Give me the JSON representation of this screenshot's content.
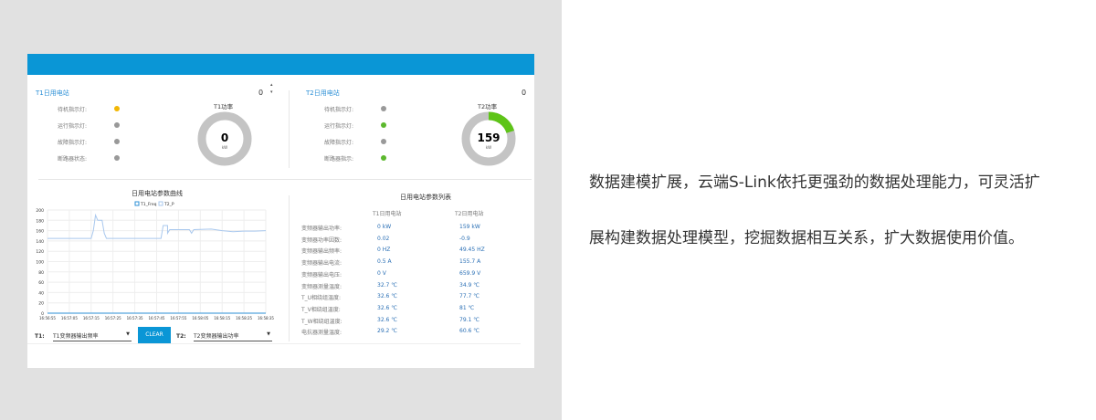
{
  "t1": {
    "title": "T1日用电站",
    "count": "0",
    "lights": [
      {
        "label": "待机指示灯:",
        "color": "#f2b705"
      },
      {
        "label": "运行指示灯:",
        "color": "#999999"
      },
      {
        "label": "故障指示灯:",
        "color": "#999999"
      },
      {
        "label": "断路器状态:",
        "color": "#999999"
      }
    ],
    "gauge_title": "T1功率",
    "gauge_value": "0",
    "gauge_unit": "kW",
    "gauge_fraction": 0
  },
  "t2": {
    "title": "T2日用电站",
    "count": "0",
    "lights": [
      {
        "label": "待机指示灯:",
        "color": "#999999"
      },
      {
        "label": "运行指示灯:",
        "color": "#5cb82e"
      },
      {
        "label": "故障指示灯:",
        "color": "#999999"
      },
      {
        "label": "断路器指示:",
        "color": "#5cb82e"
      }
    ],
    "gauge_title": "T2功率",
    "gauge_value": "159",
    "gauge_unit": "kW",
    "gauge_fraction": 0.2
  },
  "chart_data": {
    "type": "line",
    "title": "日用电站参数曲线",
    "ylim": [
      0,
      200
    ],
    "yticks": [
      "0",
      "20",
      "40",
      "60",
      "80",
      "100",
      "120",
      "140",
      "160",
      "180",
      "200"
    ],
    "xticks": [
      "16:56:55",
      "16:57:05",
      "16:57:15",
      "16:57:25",
      "16:57:35",
      "16:57:45",
      "16:57:55",
      "16:58:05",
      "16:58:15",
      "16:58:25",
      "16:58:35"
    ],
    "series": [
      {
        "name": "T1_Freq",
        "color": "#2b8fd6",
        "points": [
          [
            "16:56:55",
            0
          ],
          [
            "16:58:35",
            0
          ]
        ]
      },
      {
        "name": "T2_P",
        "color": "#a9c8ee",
        "points": [
          [
            "16:56:55",
            145
          ],
          [
            "16:57:15",
            145
          ],
          [
            "16:57:16",
            160
          ],
          [
            "16:57:17",
            190
          ],
          [
            "16:57:18",
            180
          ],
          [
            "16:57:20",
            180
          ],
          [
            "16:57:21",
            155
          ],
          [
            "16:57:22",
            145
          ],
          [
            "16:57:47",
            145
          ],
          [
            "16:57:48",
            170
          ],
          [
            "16:57:50",
            170
          ],
          [
            "16:57:50",
            155
          ],
          [
            "16:57:51",
            162
          ],
          [
            "16:58:00",
            162
          ],
          [
            "16:58:01",
            155
          ],
          [
            "16:58:02",
            162
          ],
          [
            "16:58:10",
            163
          ],
          [
            "16:58:15",
            160
          ],
          [
            "16:58:20",
            158
          ],
          [
            "16:58:25",
            159
          ],
          [
            "16:58:30",
            159
          ],
          [
            "16:58:35",
            160
          ]
        ]
      }
    ]
  },
  "controls": {
    "t1_label": "T1:",
    "t1_select": "T1变频器输出频率",
    "clear": "CLEAR",
    "t2_label": "T2:",
    "t2_select": "T2变频器输出功率"
  },
  "table": {
    "title": "日用电站参数列表",
    "headers": [
      "",
      "T1日用电站",
      "T2日用电站"
    ],
    "rows": [
      [
        "变频器输出功率:",
        "0 kW",
        "159 kW"
      ],
      [
        "变频器功率因数:",
        "0.02",
        "-0.9"
      ],
      [
        "变频器输出频率:",
        "0 HZ",
        "49.45 HZ"
      ],
      [
        "变频器输出电流:",
        "0.5 A",
        "155.7 A"
      ],
      [
        "变频器输出电压:",
        "0 V",
        "659.9 V"
      ],
      [
        "变频器测量温度:",
        "32.7 ℃",
        "34.9 ℃"
      ],
      [
        "T_U相绕组温度:",
        "32.6 ℃",
        "77.7 ℃"
      ],
      [
        "T_V相绕组温度:",
        "32.6 ℃",
        "81 ℃"
      ],
      [
        "T_W相绕组温度:",
        "32.6 ℃",
        "79.1 ℃"
      ],
      [
        "电抗器测量温度:",
        "29.2 ℃",
        "60.6 ℃"
      ]
    ]
  },
  "promo": {
    "line1": "数据建模扩展，云端S-Link依托更强劲的数据处理能力，可灵活扩",
    "line2": "展构建数据处理模型，挖掘数据相互关系，扩大数据使用价值。"
  }
}
